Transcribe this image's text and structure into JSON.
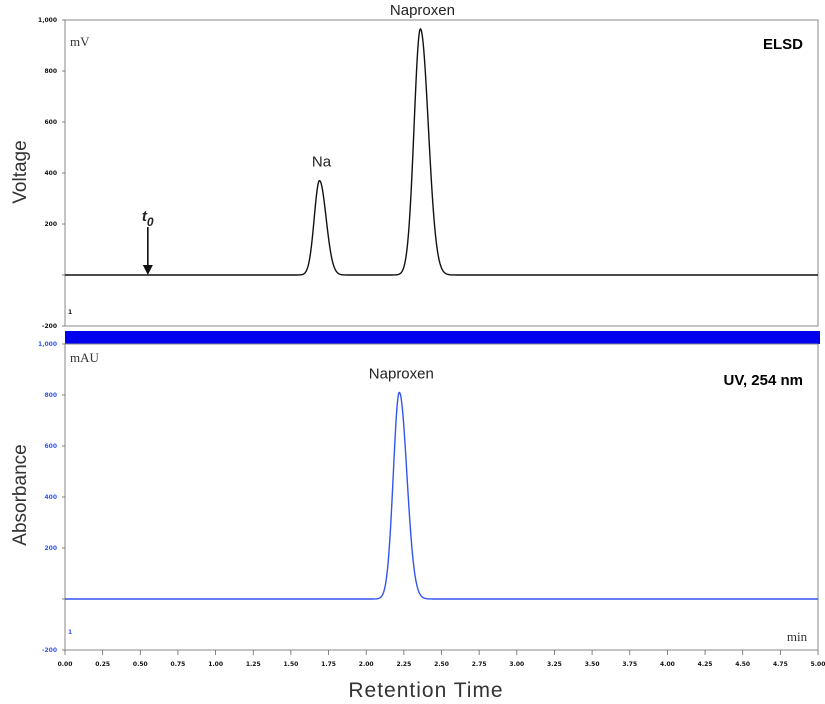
{
  "chart_data": [
    {
      "type": "line",
      "detector": "ELSD",
      "ylabel": "Voltage",
      "unit": "mV",
      "ylim": [
        -200,
        1000
      ],
      "yticks": [
        "-200",
        "",
        "200",
        "400",
        "600",
        "800",
        "1,000"
      ],
      "colors": {
        "line": "#111111",
        "ticks": "#111111"
      },
      "corner_tick": "1",
      "peaks": [
        {
          "label": "Na",
          "x": 1.69,
          "height": 370,
          "width": 0.035
        },
        {
          "label": "Naproxen",
          "x": 2.36,
          "height": 965,
          "width": 0.042
        }
      ],
      "baseline": 0,
      "annotation": {
        "label": "t",
        "subscript": "0",
        "x": 0.55
      }
    },
    {
      "type": "line",
      "detector": "UV, 254 nm",
      "ylabel": "Absorbance",
      "unit": "mAU",
      "ylim": [
        -200,
        1000
      ],
      "yticks": [
        "-200",
        "",
        "200",
        "400",
        "600",
        "800",
        "1,000"
      ],
      "colors": {
        "line": "#3355ee",
        "ticks": "#3355ee"
      },
      "corner_tick": "1",
      "peaks": [
        {
          "label": "Naproxen",
          "x": 2.22,
          "height": 810,
          "width": 0.04
        }
      ],
      "baseline": 0
    }
  ],
  "xaxis": {
    "title": "Retention Time",
    "unit": "min",
    "xlim": [
      0,
      5.0
    ],
    "ticks": [
      "0.00",
      "0.25",
      "0.50",
      "0.75",
      "1.00",
      "1.25",
      "1.50",
      "1.75",
      "2.00",
      "2.25",
      "2.50",
      "2.75",
      "3.00",
      "3.25",
      "3.50",
      "3.75",
      "4.00",
      "4.25",
      "4.50",
      "4.75",
      "5.00"
    ]
  },
  "separator_color": "#0000ee"
}
